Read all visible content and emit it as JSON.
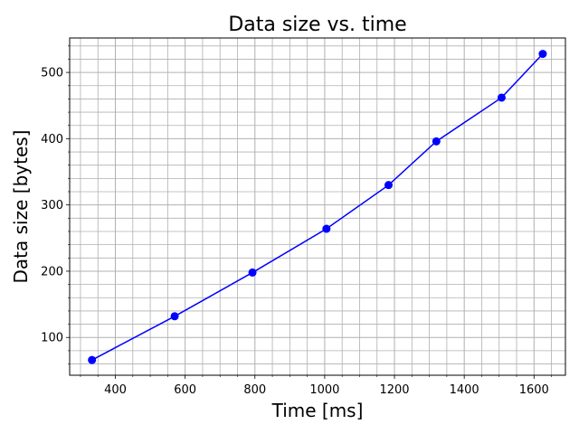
{
  "chart_data": {
    "type": "line",
    "title": "Data size vs. time",
    "xlabel": "Time [ms]",
    "ylabel": "Data size [bytes]",
    "x": [
      333,
      570,
      793,
      1005,
      1183,
      1320,
      1507,
      1625
    ],
    "series": [
      {
        "name": "",
        "values": [
          66,
          132,
          198,
          264,
          330,
          396,
          462,
          528
        ]
      }
    ],
    "xlim": [
      269,
      1690
    ],
    "ylim": [
      43,
      552
    ],
    "xticks": [
      400,
      600,
      800,
      1000,
      1200,
      1400,
      1600
    ],
    "yticks": [
      100,
      200,
      300,
      400,
      500
    ],
    "grid": true,
    "grid_minor": true,
    "line_color": "#0000ff",
    "marker_color": "#0000ff",
    "grid_color": "#b0b0b0"
  }
}
